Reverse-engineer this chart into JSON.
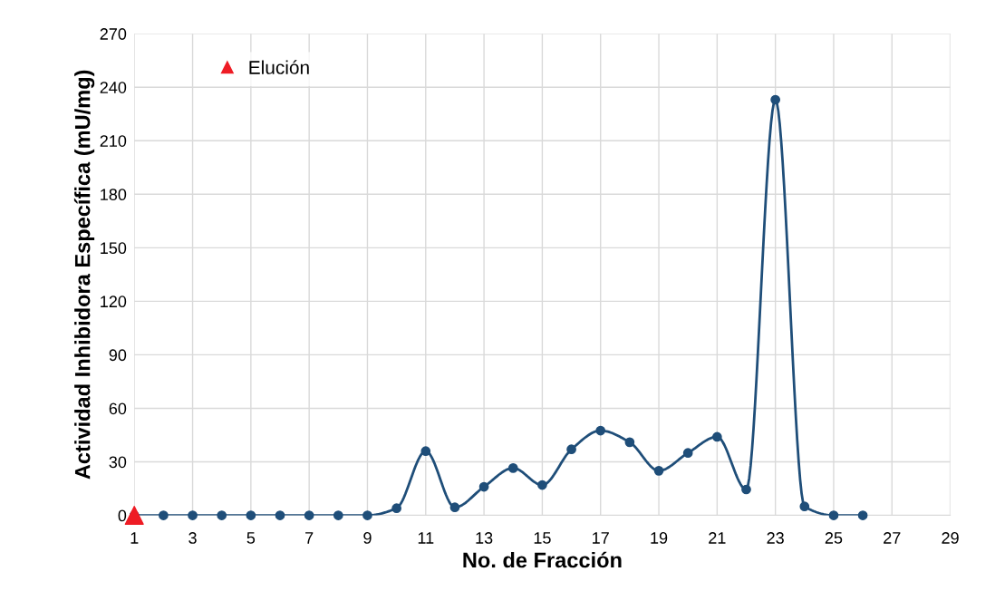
{
  "chart_data": {
    "type": "line",
    "xlabel": "No. de Fracción",
    "ylabel": "Actividad Inhibidora Específica (mU/mg)",
    "xlim": [
      1,
      29
    ],
    "xticks": [
      1,
      3,
      5,
      7,
      9,
      11,
      13,
      15,
      17,
      19,
      21,
      23,
      25,
      27,
      29
    ],
    "ylim": [
      0,
      270
    ],
    "yticks": [
      0,
      30,
      60,
      90,
      120,
      150,
      180,
      210,
      240,
      270
    ],
    "grid": true,
    "legend": "top left",
    "series": [
      {
        "color": "#1f4e79",
        "marker": "circle",
        "x": [
          1,
          2,
          3,
          4,
          5,
          6,
          7,
          8,
          9,
          10,
          11,
          12,
          13,
          14,
          15,
          16,
          17,
          18,
          19,
          20,
          21,
          22,
          23,
          24,
          25,
          26
        ],
        "values": [
          0,
          0,
          0,
          0,
          0,
          0,
          0,
          0,
          0,
          4,
          36,
          4.5,
          16,
          26.5,
          17,
          37,
          47.5,
          41,
          25,
          35,
          44,
          14.5,
          233,
          5,
          0,
          0
        ]
      },
      {
        "type": "scatter",
        "name": "Elución",
        "color": "#ee1c25",
        "marker": "triangle",
        "x": [
          1
        ],
        "values": [
          0
        ]
      }
    ]
  }
}
